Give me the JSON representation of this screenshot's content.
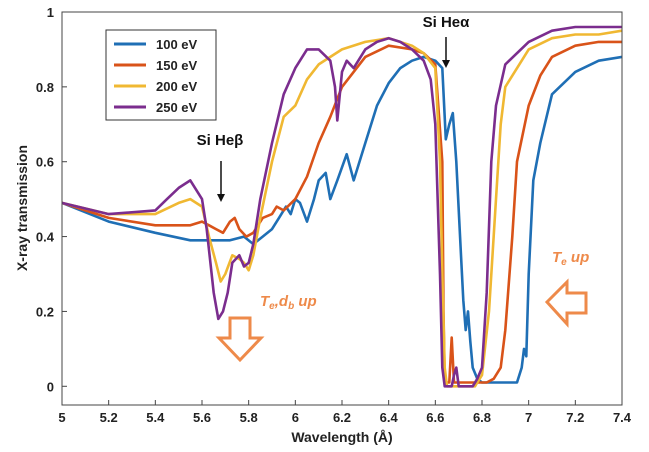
{
  "chart_data": {
    "type": "line",
    "title": "",
    "xlabel": "Wavelength (Å)",
    "ylabel": "X-ray transmission",
    "xlim": [
      5,
      7.4
    ],
    "ylim": [
      -0.05,
      1
    ],
    "x_ticks": [
      "5",
      "5.2",
      "5.4",
      "5.6",
      "5.8",
      "6",
      "6.2",
      "6.4",
      "6.6",
      "6.8",
      "7",
      "7.2",
      "7.4"
    ],
    "y_ticks": [
      "0",
      "0.2",
      "0.4",
      "0.6",
      "0.8",
      "1"
    ],
    "grid": false,
    "legend_position": "top-left",
    "series": [
      {
        "name": "100 eV",
        "color": "#1f6fb5",
        "x": [
          5.0,
          5.2,
          5.4,
          5.55,
          5.65,
          5.72,
          5.78,
          5.82,
          5.86,
          5.9,
          5.93,
          5.96,
          5.98,
          6.0,
          6.02,
          6.05,
          6.08,
          6.1,
          6.13,
          6.15,
          6.18,
          6.22,
          6.25,
          6.3,
          6.35,
          6.4,
          6.45,
          6.5,
          6.55,
          6.6,
          6.63,
          6.645,
          6.66,
          6.675,
          6.69,
          6.71,
          6.72,
          6.73,
          6.74,
          6.75,
          6.76,
          6.78,
          6.8,
          6.85,
          6.9,
          6.95,
          6.97,
          6.98,
          6.99,
          7.0,
          7.02,
          7.05,
          7.1,
          7.2,
          7.3,
          7.4
        ],
        "y": [
          0.49,
          0.44,
          0.41,
          0.39,
          0.39,
          0.39,
          0.4,
          0.38,
          0.4,
          0.42,
          0.45,
          0.48,
          0.46,
          0.5,
          0.49,
          0.44,
          0.5,
          0.55,
          0.57,
          0.5,
          0.55,
          0.62,
          0.55,
          0.65,
          0.75,
          0.81,
          0.85,
          0.87,
          0.88,
          0.87,
          0.85,
          0.66,
          0.7,
          0.73,
          0.6,
          0.35,
          0.23,
          0.15,
          0.2,
          0.12,
          0.05,
          0.02,
          0.01,
          0.01,
          0.01,
          0.01,
          0.05,
          0.1,
          0.08,
          0.3,
          0.55,
          0.65,
          0.78,
          0.84,
          0.87,
          0.88
        ]
      },
      {
        "name": "150 eV",
        "color": "#d95319",
        "x": [
          5.0,
          5.2,
          5.4,
          5.55,
          5.6,
          5.63,
          5.66,
          5.69,
          5.72,
          5.74,
          5.76,
          5.79,
          5.82,
          5.86,
          5.9,
          5.92,
          5.95,
          6.0,
          6.05,
          6.1,
          6.15,
          6.2,
          6.3,
          6.4,
          6.5,
          6.55,
          6.6,
          6.63,
          6.635,
          6.64,
          6.66,
          6.67,
          6.68,
          6.69,
          6.7,
          6.75,
          6.8,
          6.82,
          6.85,
          6.88,
          6.9,
          6.93,
          6.95,
          7.0,
          7.05,
          7.1,
          7.2,
          7.3,
          7.4
        ],
        "y": [
          0.49,
          0.45,
          0.43,
          0.43,
          0.44,
          0.43,
          0.42,
          0.41,
          0.44,
          0.45,
          0.42,
          0.4,
          0.41,
          0.45,
          0.46,
          0.48,
          0.47,
          0.5,
          0.56,
          0.65,
          0.72,
          0.8,
          0.88,
          0.91,
          0.9,
          0.89,
          0.86,
          0.6,
          0.2,
          0.01,
          0.01,
          0.13,
          0.01,
          0.01,
          0.01,
          0.01,
          0.01,
          0.01,
          0.02,
          0.05,
          0.15,
          0.4,
          0.6,
          0.75,
          0.83,
          0.88,
          0.91,
          0.92,
          0.92
        ]
      },
      {
        "name": "200 eV",
        "color": "#f0b832",
        "x": [
          5.0,
          5.2,
          5.4,
          5.5,
          5.55,
          5.6,
          5.63,
          5.66,
          5.68,
          5.7,
          5.73,
          5.76,
          5.78,
          5.8,
          5.82,
          5.85,
          5.9,
          5.95,
          6.0,
          6.05,
          6.1,
          6.2,
          6.3,
          6.4,
          6.5,
          6.55,
          6.6,
          6.62,
          6.63,
          6.64,
          6.65,
          6.7,
          6.75,
          6.77,
          6.78,
          6.8,
          6.83,
          6.86,
          6.88,
          6.9,
          7.0,
          7.1,
          7.2,
          7.3,
          7.4
        ],
        "y": [
          0.49,
          0.46,
          0.46,
          0.49,
          0.5,
          0.48,
          0.4,
          0.33,
          0.28,
          0.3,
          0.35,
          0.34,
          0.33,
          0.31,
          0.35,
          0.45,
          0.6,
          0.72,
          0.75,
          0.82,
          0.86,
          0.9,
          0.92,
          0.93,
          0.91,
          0.89,
          0.85,
          0.6,
          0.3,
          0.05,
          0.0,
          0.0,
          0.0,
          0.0,
          0.01,
          0.03,
          0.2,
          0.5,
          0.7,
          0.8,
          0.9,
          0.93,
          0.94,
          0.94,
          0.95
        ]
      },
      {
        "name": "250 eV",
        "color": "#7b2d8e",
        "x": [
          5.0,
          5.2,
          5.4,
          5.45,
          5.5,
          5.55,
          5.6,
          5.62,
          5.65,
          5.67,
          5.69,
          5.71,
          5.73,
          5.76,
          5.78,
          5.8,
          5.82,
          5.85,
          5.9,
          5.95,
          6.0,
          6.05,
          6.1,
          6.15,
          6.17,
          6.18,
          6.2,
          6.22,
          6.25,
          6.3,
          6.35,
          6.4,
          6.45,
          6.5,
          6.55,
          6.58,
          6.6,
          6.62,
          6.63,
          6.64,
          6.67,
          6.68,
          6.69,
          6.7,
          6.72,
          6.76,
          6.78,
          6.8,
          6.82,
          6.84,
          6.86,
          6.9,
          7.0,
          7.1,
          7.2,
          7.3,
          7.4
        ],
        "y": [
          0.49,
          0.46,
          0.47,
          0.5,
          0.53,
          0.55,
          0.5,
          0.42,
          0.25,
          0.18,
          0.2,
          0.25,
          0.33,
          0.35,
          0.32,
          0.33,
          0.38,
          0.5,
          0.65,
          0.78,
          0.85,
          0.9,
          0.9,
          0.87,
          0.8,
          0.71,
          0.84,
          0.87,
          0.85,
          0.9,
          0.92,
          0.93,
          0.92,
          0.9,
          0.87,
          0.82,
          0.7,
          0.3,
          0.05,
          0.0,
          0.0,
          0.03,
          0.05,
          0.0,
          0.0,
          0.0,
          0.02,
          0.05,
          0.25,
          0.6,
          0.75,
          0.86,
          0.92,
          0.95,
          0.96,
          0.96,
          0.96
        ]
      }
    ],
    "annotations": {
      "si_he_beta": "Si Heβ",
      "si_he_alpha": "Si Heα",
      "te_db_up_main": "T",
      "te_db_up_sub1": "e",
      "te_db_up_mid": ",d",
      "te_db_up_sub2": "b",
      "te_db_up_tail": " up",
      "te_up_main": "T",
      "te_up_sub": "e",
      "te_up_tail": " up",
      "orange_color": "#ee8a4a"
    }
  }
}
